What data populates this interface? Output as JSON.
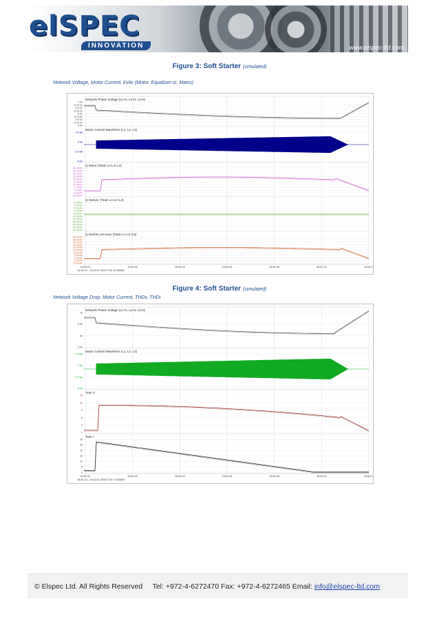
{
  "header": {
    "logo_text": "elSPEC",
    "tagline": "INNOVATION",
    "url": "www.elspec-ltd.com"
  },
  "figure3": {
    "title": "Figure 3: Soft Starter",
    "note": "(simulated)",
    "subtitle": "Network Voltage, Motor Current, kVAr (Motor, Equalizer-st, Mains)",
    "panels": [
      {
        "label": "Network Phase Voltage (L1-N, L2-N, L3-N)",
        "color": "#555555",
        "ticks": [
          "7 kV",
          "6.75 kV",
          "6.5 kV",
          "6.25 kV",
          "6 kV",
          "5.75 kV",
          "5.5 kV",
          "5.25 kV",
          "5 kV"
        ]
      },
      {
        "label": "Motor Current Waveform (L1, L2, L3)",
        "color": "#00008b",
        "ticks": [
          "2.5 kA",
          "0 kA",
          "-2.5 kA",
          "-5 kA"
        ]
      },
      {
        "label": "Q Motor (Total L1+L2+L3)",
        "color": "#cc66cc",
        "ticks": [
          "40 MVAr",
          "35 MVAr",
          "30 MVAr",
          "25 MVAr",
          "20 MVAr",
          "15 MVAr",
          "10 MVAr",
          "5 MVAr",
          "0 MVAr",
          "-5 MVAr",
          "-10 MVAr"
        ]
      },
      {
        "label": "Q Starvar (Total L1+L2+L3)",
        "color": "#66aa44",
        "ticks": [
          "10 MVAr",
          "5 MVAr",
          "0 MVAr",
          "-5 MVAr",
          "-10 MVAr",
          "-15 MVAr",
          "-20 MVAr",
          "-25 MVAr",
          "-30 MVAr",
          "-35 MVAr",
          "-40 MVAr"
        ]
      },
      {
        "label": "Q NADIN net+evar (Total L1+L2+L3)",
        "color": "#cc6633",
        "ticks": [
          "40 MVAr",
          "35 MVAr",
          "30 MVAr",
          "25 MVAr",
          "20 MVAr",
          "15 MVAr",
          "10 MVAr",
          "5 MVAr",
          "0 MVAr",
          "-5 MVAr",
          "-10 MVAr"
        ]
      }
    ],
    "x_ticks": [
      "15:52:01",
      "15:52:02",
      "15:52:04",
      "15:52:06",
      "15:52:08",
      "15:52:10",
      "15:52:11"
    ],
    "time_range": "15:32:13 - 15:32:01 2009 אוגוסט 19 יום ה'"
  },
  "figure4": {
    "title": "Figure 4: Soft Starter",
    "note": "(simulated)",
    "subtitle": "Network Voltage Drop, Motor Current, THDv, THDi",
    "panels": [
      {
        "label": "Network Phase Voltage (L1-N, L2-N, L3-N)",
        "color": "#555555",
        "ticks": [
          "7k",
          "6.5k",
          "6k",
          "5.5k"
        ]
      },
      {
        "label": "Motor Current Waveform (L1, L2, L3)",
        "color": "#11aa22",
        "ticks": [
          "2.5 kA",
          "0 kA",
          "-2.5 kA",
          "-5 kA"
        ]
      },
      {
        "label": "THD V",
        "color": "#993333",
        "ticks": [
          "15",
          "12",
          "9",
          "6",
          "3",
          "0"
        ]
      },
      {
        "label": "THD I",
        "color": "#222222",
        "ticks": [
          "30",
          "25",
          "20",
          "15",
          "10",
          "5",
          "0"
        ]
      }
    ],
    "x_ticks": [
      "15:52:01",
      "15:52:02",
      "15:52:04",
      "15:52:06",
      "15:52:08",
      "15:52:10",
      "15:52:11"
    ],
    "time_range": "15:32:13 - 15:32:01 2009 אוגוסט 19 יום ה'"
  },
  "footer": {
    "copyright": "© Elspec Ltd. All Rights Reserved",
    "contact": "Tel: +972-4-6272470 Fax: +972-4-6272465 Email:",
    "email": "info@elspec-ltd.com"
  }
}
